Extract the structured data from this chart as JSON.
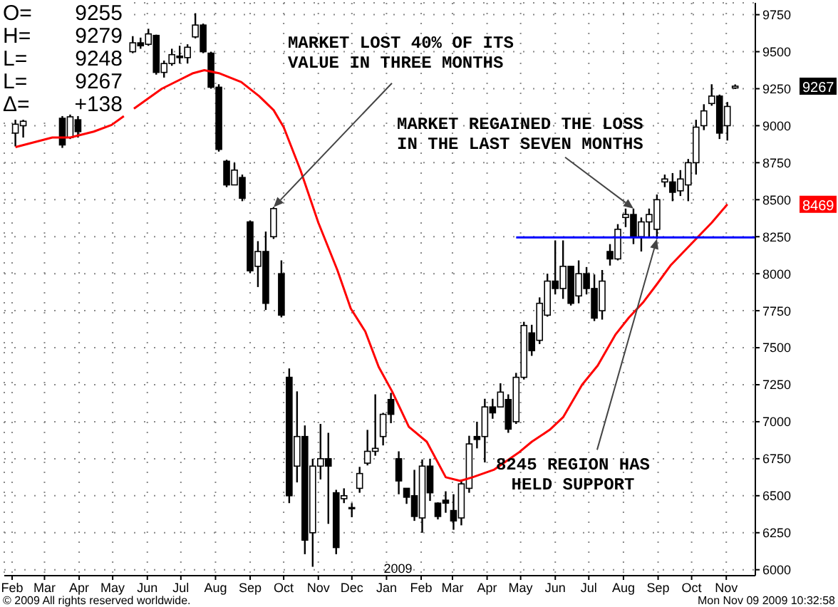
{
  "chart_data": {
    "type": "candlestick",
    "color": "#000000",
    "x": [
      "2008-02-04",
      "2008-02-11",
      "2008-03-17",
      "2008-03-24",
      "2008-03-31",
      "2008-05-19",
      "2008-05-26",
      "2008-06-02",
      "2008-06-09",
      "2008-06-16",
      "2008-06-23",
      "2008-06-30",
      "2008-07-07",
      "2008-07-14",
      "2008-07-21",
      "2008-07-28",
      "2008-08-04",
      "2008-08-11",
      "2008-08-18",
      "2008-08-25",
      "2008-09-01",
      "2008-09-08",
      "2008-09-15",
      "2008-09-22",
      "2008-09-29",
      "2008-10-06",
      "2008-10-13",
      "2008-10-20",
      "2008-10-27",
      "2008-11-03",
      "2008-11-10",
      "2008-11-17",
      "2008-11-24",
      "2008-12-01",
      "2008-12-08",
      "2008-12-15",
      "2008-12-22",
      "2008-12-29",
      "2009-01-05",
      "2009-01-12",
      "2009-01-19",
      "2009-01-26",
      "2009-02-02",
      "2009-02-09",
      "2009-02-16",
      "2009-02-23",
      "2009-03-02",
      "2009-03-09",
      "2009-03-16",
      "2009-03-23",
      "2009-03-30",
      "2009-04-06",
      "2009-04-13",
      "2009-04-20",
      "2009-04-27",
      "2009-05-04",
      "2009-05-11",
      "2009-05-18",
      "2009-05-25",
      "2009-06-01",
      "2009-06-08",
      "2009-06-15",
      "2009-06-22",
      "2009-06-29",
      "2009-07-06",
      "2009-07-13",
      "2009-07-20",
      "2009-07-27",
      "2009-08-03",
      "2009-08-10",
      "2009-08-17",
      "2009-08-24",
      "2009-08-31",
      "2009-09-07",
      "2009-09-14",
      "2009-09-21",
      "2009-09-28",
      "2009-10-05",
      "2009-10-12",
      "2009-10-19",
      "2009-10-26",
      "2009-11-02",
      "2009-11-09"
    ],
    "ohlc": [
      [
        8950,
        9040,
        8860,
        9010
      ],
      [
        9000,
        9040,
        8920,
        9030
      ],
      [
        9050,
        9065,
        8850,
        8870
      ],
      [
        8920,
        9075,
        8910,
        9060
      ],
      [
        9040,
        9065,
        8920,
        8960
      ],
      [
        9500,
        9605,
        9490,
        9560
      ],
      [
        9560,
        9595,
        9520,
        9540
      ],
      [
        9550,
        9655,
        9540,
        9620
      ],
      [
        9610,
        9615,
        9345,
        9360
      ],
      [
        9360,
        9440,
        9325,
        9420
      ],
      [
        9420,
        9520,
        9405,
        9480
      ],
      [
        9470,
        9540,
        9420,
        9460
      ],
      [
        9460,
        9550,
        9420,
        9530
      ],
      [
        9600,
        9760,
        9590,
        9680
      ],
      [
        9680,
        9690,
        9490,
        9500
      ],
      [
        9490,
        9500,
        9250,
        9260
      ],
      [
        9260,
        9280,
        8825,
        8840
      ],
      [
        8760,
        8770,
        8585,
        8600
      ],
      [
        8600,
        8750,
        8600,
        8700
      ],
      [
        8650,
        8670,
        8490,
        8510
      ],
      [
        8350,
        8360,
        8005,
        8020
      ],
      [
        8050,
        8220,
        7910,
        8150
      ],
      [
        8150,
        8285,
        7755,
        7800
      ],
      [
        8250,
        8450,
        8235,
        8440
      ],
      [
        8000,
        8090,
        7705,
        7720
      ],
      [
        7300,
        7360,
        6450,
        6500
      ],
      [
        6700,
        7205,
        6590,
        6900
      ],
      [
        6900,
        6975,
        6105,
        6200
      ],
      [
        6250,
        6750,
        6020,
        6700
      ],
      [
        6700,
        6985,
        6610,
        6750
      ],
      [
        6750,
        6925,
        6310,
        6700
      ],
      [
        6520,
        6540,
        6105,
        6150
      ],
      [
        6480,
        6550,
        6450,
        6500
      ],
      [
        6420,
        6450,
        6355,
        6420
      ],
      [
        6550,
        6695,
        6520,
        6650
      ],
      [
        6720,
        6945,
        6705,
        6800
      ],
      [
        6800,
        7185,
        6770,
        6820
      ],
      [
        6900,
        7060,
        6840,
        7050
      ],
      [
        7150,
        7195,
        6990,
        7050
      ],
      [
        6750,
        6800,
        6510,
        6600
      ],
      [
        6550,
        6550,
        6445,
        6490
      ],
      [
        6500,
        6675,
        6330,
        6360
      ],
      [
        6350,
        6745,
        6250,
        6700
      ],
      [
        6700,
        6750,
        6465,
        6520
      ],
      [
        6450,
        6455,
        6340,
        6360
      ],
      [
        6470,
        6530,
        6385,
        6450
      ],
      [
        6400,
        6510,
        6270,
        6330
      ],
      [
        6350,
        6610,
        6300,
        6580
      ],
      [
        6550,
        6905,
        6520,
        6850
      ],
      [
        6900,
        7000,
        6820,
        6880
      ],
      [
        6900,
        7155,
        6725,
        7100
      ],
      [
        7100,
        7155,
        7020,
        7060
      ],
      [
        7100,
        7260,
        7100,
        7200
      ],
      [
        7150,
        7185,
        6925,
        6950
      ],
      [
        7000,
        7330,
        6985,
        7300
      ],
      [
        7300,
        7675,
        7285,
        7650
      ],
      [
        7600,
        7655,
        7445,
        7480
      ],
      [
        7550,
        7840,
        7525,
        7800
      ],
      [
        7720,
        8000,
        7710,
        7950
      ],
      [
        7950,
        8225,
        7860,
        7900
      ],
      [
        7900,
        8225,
        7830,
        8050
      ],
      [
        8050,
        8050,
        7785,
        7800
      ],
      [
        7850,
        8090,
        7800,
        8000
      ],
      [
        8000,
        8045,
        7860,
        7900
      ],
      [
        7900,
        7995,
        7680,
        7700
      ],
      [
        7750,
        8025,
        7690,
        7950
      ],
      [
        8150,
        8200,
        8055,
        8100
      ],
      [
        8100,
        8335,
        8090,
        8300
      ],
      [
        8380,
        8440,
        8315,
        8400
      ],
      [
        8400,
        8440,
        8200,
        8250
      ],
      [
        8250,
        8380,
        8150,
        8350
      ],
      [
        8350,
        8440,
        8245,
        8400
      ],
      [
        8300,
        8535,
        8235,
        8500
      ],
      [
        8620,
        8670,
        8585,
        8640
      ],
      [
        8620,
        8680,
        8490,
        8550
      ],
      [
        8560,
        8700,
        8525,
        8640
      ],
      [
        8600,
        8775,
        8490,
        8750
      ],
      [
        8750,
        9040,
        8670,
        8990
      ],
      [
        9000,
        9145,
        8970,
        9100
      ],
      [
        9150,
        9280,
        9135,
        9200
      ],
      [
        9200,
        9210,
        8910,
        8950
      ],
      [
        9000,
        9160,
        8900,
        9130
      ],
      [
        9255,
        9279,
        9248,
        9267
      ]
    ],
    "series": [
      {
        "type": "line",
        "color": "#ff0000",
        "x": [
          "2008-02-04",
          "2008-03-08",
          "2008-03-24",
          "2008-04-14",
          "2008-04-30",
          "2008-05-11",
          "2008-05-15",
          "2008-05-20",
          "2008-06-14",
          "2008-07-12",
          "2008-07-22",
          "2008-08-04",
          "2008-08-24",
          "2008-09-09",
          "2008-09-22",
          "2008-10-01",
          "2008-10-16",
          "2008-11-01",
          "2008-11-18",
          "2008-11-30",
          "2008-12-13",
          "2008-12-25",
          "2009-01-06",
          "2009-01-21",
          "2009-02-06",
          "2009-02-23",
          "2009-03-08",
          "2009-03-19",
          "2009-04-07",
          "2009-04-29",
          "2009-05-11",
          "2009-05-27",
          "2009-06-08",
          "2009-06-25",
          "2009-07-09",
          "2009-07-25",
          "2009-08-06",
          "2009-08-19",
          "2009-08-31",
          "2009-09-12",
          "2009-10-03",
          "2009-10-19",
          "2009-11-02"
        ],
        "values": [
          8855,
          8920,
          8920,
          8960,
          9005,
          9065,
          null,
          9115,
          9250,
          9355,
          9375,
          9355,
          9295,
          9200,
          9105,
          8990,
          8700,
          8345,
          8025,
          7765,
          7610,
          7370,
          7205,
          6965,
          6865,
          6625,
          6600,
          6625,
          6675,
          6790,
          6865,
          6945,
          7030,
          7250,
          7380,
          7590,
          7705,
          7810,
          7930,
          8055,
          8220,
          8345,
          8469
        ]
      },
      {
        "type": "line",
        "color": "#0000ff",
        "x": [
          "2009-04-27",
          "2009-11-27"
        ],
        "values": [
          8245,
          8245
        ]
      }
    ],
    "xlim": [
      "2008-01-25",
      "2009-11-27"
    ],
    "xticks": [
      {
        "value": "2008-02-01",
        "label": "Feb"
      },
      {
        "value": "2008-03-01",
        "label": "Mar"
      },
      {
        "value": "2008-04-01",
        "label": "Apr"
      },
      {
        "value": "2008-05-01",
        "label": "May"
      },
      {
        "value": "2008-06-01",
        "label": "Jun"
      },
      {
        "value": "2008-07-01",
        "label": "Jul"
      },
      {
        "value": "2008-08-01",
        "label": "Aug"
      },
      {
        "value": "2008-09-01",
        "label": "Sep"
      },
      {
        "value": "2008-10-01",
        "label": "Oct"
      },
      {
        "value": "2008-11-01",
        "label": "Nov"
      },
      {
        "value": "2008-12-01",
        "label": "Dec"
      },
      {
        "value": "2009-01-01",
        "label": "Jan"
      },
      {
        "value": "2009-02-01",
        "label": "Feb"
      },
      {
        "value": "2009-03-01",
        "label": "Mar"
      },
      {
        "value": "2009-04-01",
        "label": "Apr"
      },
      {
        "value": "2009-05-01",
        "label": "May"
      },
      {
        "value": "2009-06-01",
        "label": "Jun"
      },
      {
        "value": "2009-07-01",
        "label": "Jul"
      },
      {
        "value": "2009-08-01",
        "label": "Aug"
      },
      {
        "value": "2009-09-01",
        "label": "Sep"
      },
      {
        "value": "2009-10-01",
        "label": "Oct"
      },
      {
        "value": "2009-11-01",
        "label": "Nov"
      }
    ],
    "ylim": [
      5960,
      9830
    ],
    "yticks": [
      6000,
      6250,
      6500,
      6750,
      7000,
      7250,
      7500,
      7750,
      8000,
      8250,
      8500,
      8750,
      9000,
      9250,
      9500,
      9750
    ],
    "grid": true,
    "annotations": [
      {
        "text": "MARKET LOST 40% OF ITS VALUE IN THREE MONTHS",
        "x": "2008-09-22",
        "y": 8450
      },
      {
        "text": "MARKET REGAINED THE LOSS IN THE LAST SEVEN MONTHS",
        "x": "2009-08-10",
        "y": 8440
      },
      {
        "text": "8245 REGION HAS HELD SUPPORT",
        "x": "2009-08-31",
        "y": 8235
      },
      "9267",
      "8469",
      "2009",
      "O= 9255",
      "H= 9279",
      "L= 9248",
      "L= 9267",
      "Δ= +138",
      "Mon Nov 09 2009 10:32:58",
      "© 2009 All rights reserved worldwide."
    ]
  }
}
